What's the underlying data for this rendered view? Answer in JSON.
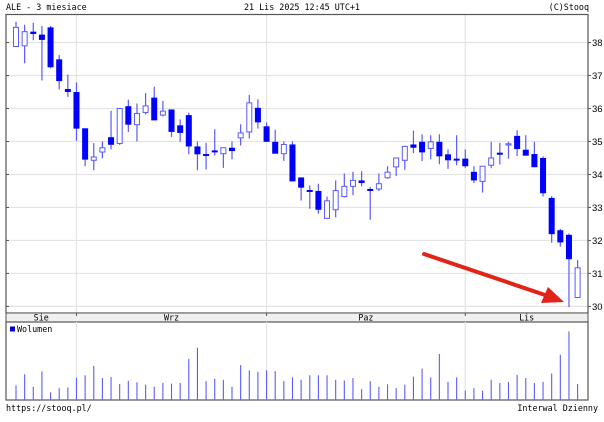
{
  "header": {
    "title": "ALE - 3 miesiace",
    "datetime": "21 Lis 2025 12:45 UTC+1",
    "copyright": "(C)Stooq"
  },
  "footer": {
    "url": "https://stooq.pl/",
    "interval": "Interwal Dzienny"
  },
  "colors": {
    "candle": "#0000ff",
    "wick": "#5a5aff",
    "volume": "#5c5cff",
    "grid": "#e4e4e4",
    "arrow": "#e2231a"
  },
  "chart_data": [
    {
      "type": "candlestick",
      "title": "ALE - 3 miesiace",
      "ylim": [
        29.8,
        38.85
      ],
      "yticks": [
        "30",
        "31",
        "32",
        "33",
        "34",
        "35",
        "36",
        "37",
        "38"
      ],
      "grid": true,
      "months": [
        {
          "label": "Sie",
          "start_index": 0
        },
        {
          "label": "Wrz",
          "start_index": 7
        },
        {
          "label": "Paz",
          "start_index": 29
        },
        {
          "label": "Lis",
          "start_index": 52
        }
      ],
      "ohlc": [
        [
          37.88,
          38.63,
          37.88,
          38.46
        ],
        [
          37.9,
          38.54,
          37.37,
          38.33
        ],
        [
          38.33,
          38.6,
          38.07,
          38.26
        ],
        [
          38.24,
          38.5,
          36.85,
          38.08
        ],
        [
          38.46,
          38.5,
          37.22,
          37.25
        ],
        [
          37.49,
          37.62,
          36.58,
          36.83
        ],
        [
          36.59,
          37.03,
          36.35,
          36.5
        ],
        [
          36.5,
          36.79,
          35.02,
          35.39
        ],
        [
          35.4,
          35.4,
          34.25,
          34.45
        ],
        [
          34.43,
          34.95,
          34.13,
          34.53
        ],
        [
          34.68,
          35.0,
          34.49,
          34.81
        ],
        [
          35.13,
          35.93,
          34.76,
          34.9
        ],
        [
          34.94,
          36.0,
          34.9,
          36.0
        ],
        [
          36.07,
          36.27,
          35.29,
          35.51
        ],
        [
          35.51,
          36.15,
          35.0,
          35.85
        ],
        [
          35.88,
          36.47,
          35.82,
          36.08
        ],
        [
          36.33,
          36.66,
          35.64,
          35.64
        ],
        [
          35.8,
          36.23,
          35.76,
          35.92
        ],
        [
          35.97,
          35.97,
          35.14,
          35.29
        ],
        [
          35.49,
          35.67,
          34.99,
          35.26
        ],
        [
          35.8,
          35.87,
          34.61,
          34.85
        ],
        [
          34.85,
          35.0,
          34.13,
          34.61
        ],
        [
          34.62,
          34.96,
          34.15,
          34.6
        ],
        [
          34.73,
          35.37,
          34.58,
          34.69
        ],
        [
          34.63,
          34.81,
          34.2,
          34.81
        ],
        [
          34.81,
          35.0,
          34.46,
          34.71
        ],
        [
          35.11,
          35.52,
          34.88,
          35.26
        ],
        [
          35.29,
          36.41,
          35.09,
          36.17
        ],
        [
          36.02,
          36.28,
          35.39,
          35.58
        ],
        [
          35.46,
          35.58,
          34.99,
          34.99
        ],
        [
          34.99,
          35.36,
          34.63,
          34.63
        ],
        [
          34.63,
          35.0,
          34.41,
          34.91
        ],
        [
          34.91,
          35.0,
          33.79,
          33.79
        ],
        [
          33.91,
          33.91,
          33.21,
          33.6
        ],
        [
          33.53,
          33.67,
          32.96,
          33.52
        ],
        [
          33.5,
          33.72,
          32.81,
          32.93
        ],
        [
          32.67,
          33.33,
          32.66,
          33.2
        ],
        [
          32.93,
          33.82,
          32.7,
          33.51
        ],
        [
          33.33,
          34.03,
          33.3,
          33.64
        ],
        [
          33.64,
          34.08,
          33.37,
          33.82
        ],
        [
          33.82,
          34.1,
          33.64,
          33.74
        ],
        [
          33.56,
          33.62,
          32.63,
          33.53
        ],
        [
          33.56,
          34.03,
          33.5,
          33.72
        ],
        [
          33.9,
          34.25,
          33.87,
          34.07
        ],
        [
          34.23,
          34.5,
          33.95,
          34.5
        ],
        [
          34.43,
          34.87,
          34.14,
          34.85
        ],
        [
          34.91,
          35.33,
          34.65,
          34.81
        ],
        [
          34.99,
          35.22,
          34.41,
          34.67
        ],
        [
          34.79,
          35.19,
          34.46,
          34.99
        ],
        [
          34.99,
          35.22,
          34.31,
          34.55
        ],
        [
          34.61,
          34.76,
          34.17,
          34.43
        ],
        [
          34.48,
          35.19,
          34.28,
          34.45
        ],
        [
          34.48,
          34.76,
          34.2,
          34.25
        ],
        [
          34.08,
          34.25,
          33.74,
          33.82
        ],
        [
          33.79,
          34.25,
          33.45,
          34.25
        ],
        [
          34.28,
          34.99,
          34.19,
          34.5
        ],
        [
          34.66,
          34.96,
          34.3,
          34.65
        ],
        [
          34.92,
          34.99,
          34.48,
          34.93
        ],
        [
          35.17,
          35.34,
          34.56,
          34.77
        ],
        [
          34.75,
          35.19,
          34.57,
          34.57
        ],
        [
          34.62,
          34.99,
          34.22,
          34.22
        ],
        [
          34.5,
          34.55,
          33.33,
          33.43
        ],
        [
          33.29,
          33.34,
          31.93,
          32.19
        ],
        [
          32.31,
          32.35,
          31.81,
          31.94
        ],
        [
          32.17,
          32.21,
          29.98,
          31.43
        ],
        [
          30.27,
          31.41,
          30.26,
          31.17
        ]
      ]
    },
    {
      "type": "bar",
      "legend": "Wolumen",
      "units": "relative",
      "values": [
        42,
        74,
        38,
        82,
        22,
        34,
        36,
        64,
        71,
        98,
        63,
        66,
        46,
        55,
        51,
        44,
        38,
        49,
        47,
        49,
        118,
        150,
        54,
        61,
        58,
        38,
        100,
        85,
        81,
        85,
        83,
        54,
        65,
        58,
        71,
        71,
        71,
        58,
        56,
        63,
        31,
        54,
        38,
        45,
        34,
        44,
        67,
        90,
        65,
        132,
        52,
        65,
        27,
        34,
        27,
        58,
        49,
        52,
        72,
        63,
        49,
        52,
        76,
        130,
        197,
        46
      ]
    }
  ]
}
